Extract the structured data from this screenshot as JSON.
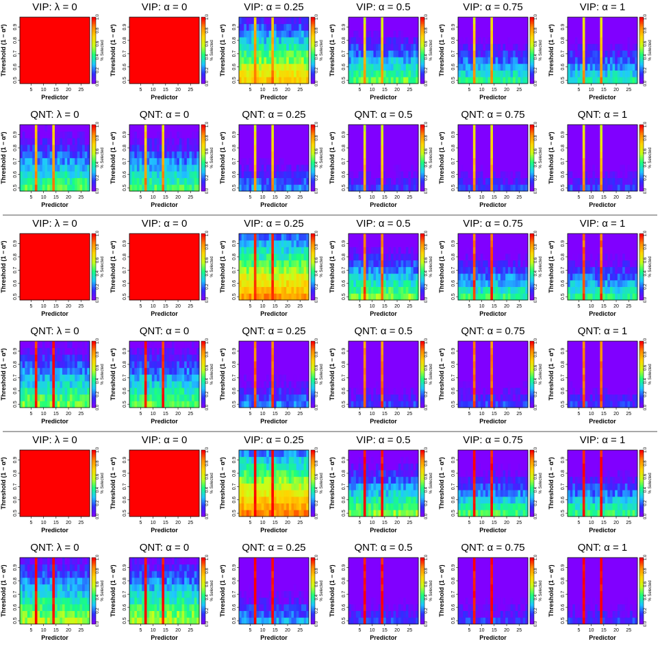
{
  "panel_titles": [
    "VIP:  λ = 0",
    "VIP:  α = 0",
    "VIP:  α = 0.25",
    "VIP:  α = 0.5",
    "VIP:  α = 0.75",
    "VIP:  α = 1",
    "QNT:  λ = 0",
    "QNT:  α = 0",
    "QNT:  α = 0.25",
    "QNT:  α = 0.5",
    "QNT:  α = 0.75",
    "QNT:  α = 1"
  ],
  "xlabel": "Predictor",
  "ylabel": "Threshold  (1 − α*)",
  "colorbar_label": "% Selected",
  "x_ticks": [
    5,
    10,
    15,
    20,
    25
  ],
  "y_ticks": [
    0.5,
    0.6,
    0.7,
    0.8,
    0.9
  ],
  "colorbar_ticks": [
    0.0,
    0.2,
    0.4,
    0.6,
    0.8,
    1.0
  ],
  "colors": {
    "scale": [
      "#8000ff",
      "#2f2fff",
      "#1fc8ff",
      "#19ff7f",
      "#c8ff19",
      "#ffd400",
      "#ff8c00",
      "#ff0000"
    ],
    "separator": "#a8a8a8"
  },
  "chart_data": {
    "type": "heatmap",
    "layout": "3 groups × 2 rows × 6 panels",
    "x": {
      "label": "Predictor",
      "range": [
        1,
        28
      ],
      "ticks": [
        5,
        10,
        15,
        20,
        25
      ]
    },
    "y": {
      "label": "Threshold (1 − α*)",
      "range": [
        0.5,
        0.95
      ],
      "ticks": [
        0.5,
        0.6,
        0.7,
        0.8,
        0.9
      ]
    },
    "z": {
      "label": "% Selected",
      "range": [
        0,
        1
      ]
    },
    "true_predictors": [
      7,
      14
    ],
    "groups": [
      {
        "panels": [
          {
            "title": "VIP:  λ = 0",
            "base": 1.0,
            "slope": 0,
            "signal": 1.0
          },
          {
            "title": "VIP:  α = 0",
            "base": 1.0,
            "slope": 0,
            "signal": 1.0
          },
          {
            "title": "VIP:  α = 0.25",
            "base": 0.72,
            "slope": 1.55,
            "signal": 0.74
          },
          {
            "title": "VIP:  α = 0.5",
            "base": 0.48,
            "slope": 1.55,
            "signal": 0.62
          },
          {
            "title": "VIP:  α = 0.75",
            "base": 0.4,
            "slope": 1.55,
            "signal": 0.66
          },
          {
            "title": "VIP:  α = 1",
            "base": 0.38,
            "slope": 1.55,
            "signal": 0.64
          },
          {
            "title": "QNT:  λ = 0",
            "base": 0.46,
            "slope": 1.25,
            "signal": 0.7
          },
          {
            "title": "QNT:  α = 0",
            "base": 0.44,
            "slope": 1.25,
            "signal": 0.7
          },
          {
            "title": "QNT:  α = 0.25",
            "base": 0.22,
            "slope": 1.35,
            "signal": 0.62
          },
          {
            "title": "QNT:  α = 0.5",
            "base": 0.13,
            "slope": 1.35,
            "signal": 0.6
          },
          {
            "title": "QNT:  α = 0.75",
            "base": 0.14,
            "slope": 1.35,
            "signal": 0.62
          },
          {
            "title": "QNT:  α = 1",
            "base": 0.13,
            "slope": 1.35,
            "signal": 0.62
          }
        ]
      },
      {
        "panels": [
          {
            "title": "VIP:  λ = 0",
            "base": 1.0,
            "slope": 0,
            "signal": 1.0
          },
          {
            "title": "VIP:  α = 0",
            "base": 1.0,
            "slope": 0,
            "signal": 1.0
          },
          {
            "title": "VIP:  α = 0.25",
            "base": 0.82,
            "slope": 1.55,
            "signal": 0.95
          },
          {
            "title": "VIP:  α = 0.5",
            "base": 0.5,
            "slope": 1.55,
            "signal": 0.84
          },
          {
            "title": "VIP:  α = 0.75",
            "base": 0.42,
            "slope": 1.55,
            "signal": 0.88
          },
          {
            "title": "VIP:  α = 1",
            "base": 0.4,
            "slope": 1.55,
            "signal": 0.88
          },
          {
            "title": "QNT:  λ = 0",
            "base": 0.5,
            "slope": 1.25,
            "signal": 0.96
          },
          {
            "title": "QNT:  α = 0",
            "base": 0.48,
            "slope": 1.25,
            "signal": 0.96
          },
          {
            "title": "QNT:  α = 0.25",
            "base": 0.22,
            "slope": 1.35,
            "signal": 0.85
          },
          {
            "title": "QNT:  α = 0.5",
            "base": 0.13,
            "slope": 1.35,
            "signal": 0.82
          },
          {
            "title": "QNT:  α = 0.75",
            "base": 0.14,
            "slope": 1.35,
            "signal": 0.84
          },
          {
            "title": "QNT:  α = 1",
            "base": 0.13,
            "slope": 1.35,
            "signal": 0.84
          }
        ]
      },
      {
        "panels": [
          {
            "title": "VIP:  λ = 0",
            "base": 1.0,
            "slope": 0,
            "signal": 1.0
          },
          {
            "title": "VIP:  α = 0",
            "base": 1.0,
            "slope": 0,
            "signal": 1.0
          },
          {
            "title": "VIP:  α = 0.25",
            "base": 0.86,
            "slope": 1.55,
            "signal": 1.0
          },
          {
            "title": "VIP:  α = 0.5",
            "base": 0.52,
            "slope": 1.55,
            "signal": 0.98
          },
          {
            "title": "VIP:  α = 0.75",
            "base": 0.44,
            "slope": 1.55,
            "signal": 0.98
          },
          {
            "title": "VIP:  α = 1",
            "base": 0.42,
            "slope": 1.55,
            "signal": 0.98
          },
          {
            "title": "QNT:  λ = 0",
            "base": 0.55,
            "slope": 1.25,
            "signal": 0.99
          },
          {
            "title": "QNT:  α = 0",
            "base": 0.55,
            "slope": 1.25,
            "signal": 0.99
          },
          {
            "title": "QNT:  α = 0.25",
            "base": 0.24,
            "slope": 1.35,
            "signal": 0.98
          },
          {
            "title": "QNT:  α = 0.5",
            "base": 0.14,
            "slope": 1.35,
            "signal": 0.98
          },
          {
            "title": "QNT:  α = 0.75",
            "base": 0.14,
            "slope": 1.35,
            "signal": 0.99
          },
          {
            "title": "QNT:  α = 1",
            "base": 0.13,
            "slope": 1.35,
            "signal": 0.99
          }
        ]
      }
    ]
  }
}
